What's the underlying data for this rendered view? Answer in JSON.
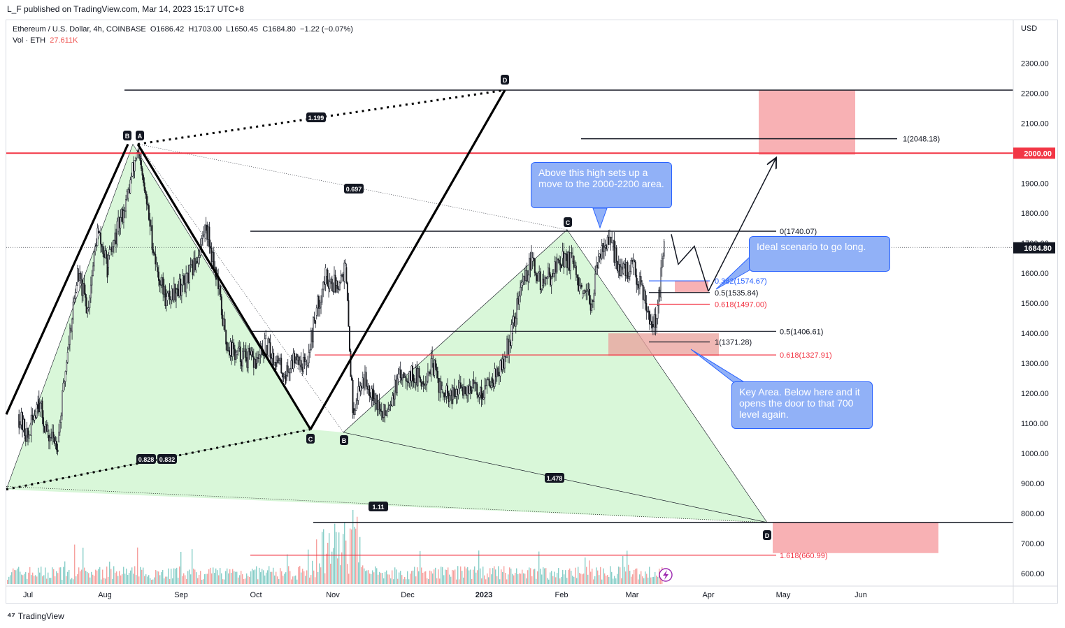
{
  "header": {
    "published": "L_F published on TradingView.com, Mar 14, 2023 15:17 UTC+8"
  },
  "legend": {
    "symbol": "Ethereum / U.S. Dollar, 4h, COINBASE",
    "open": "O1686.42",
    "high": "H1703.00",
    "low": "L1650.45",
    "close": "C1684.80",
    "change": "−1.22 (−0.07%)",
    "vol_label": "Vol · ETH",
    "vol_value": "27.611K"
  },
  "footer": {
    "brand": "TradingView"
  },
  "colors": {
    "up": "#26a69a",
    "down": "#ef5350",
    "zone": "#f7a3a7",
    "pattern_fill": "#d9f7d9",
    "callout_bg": "#91b1f7",
    "resistance": "#f23645",
    "fib_blue": "#2962ff"
  },
  "chart_data": {
    "type": "candlestick",
    "title": "Ethereum / U.S. Dollar, 4h, COINBASE",
    "ylabel": "USD",
    "ylim": [
      560,
      2520
    ],
    "y_ticks": [
      "600.00",
      "700.00",
      "800.00",
      "900.00",
      "1000.00",
      "1100.00",
      "1200.00",
      "1300.00",
      "1400.00",
      "1500.00",
      "1600.00",
      "1700.00",
      "1800.00",
      "1900.00",
      "2000.00",
      "2100.00",
      "2200.00",
      "2300.00"
    ],
    "x_ticks": [
      "Jul",
      "Aug",
      "Sep",
      "Oct",
      "Nov",
      "Dec",
      "2023",
      "Feb",
      "Mar",
      "Apr",
      "May",
      "Jun"
    ],
    "price_path": [
      [
        "Jun 27",
        1130
      ],
      [
        "Jul 1",
        1050
      ],
      [
        "Jul 5",
        1180
      ],
      [
        "Jul 9",
        1060
      ],
      [
        "Jul 13",
        1040
      ],
      [
        "Jul 17",
        1350
      ],
      [
        "Jul 21",
        1600
      ],
      [
        "Jul 25",
        1480
      ],
      [
        "Jul 29",
        1740
      ],
      [
        "Aug 2",
        1620
      ],
      [
        "Aug 6",
        1740
      ],
      [
        "Aug 10",
        1850
      ],
      [
        "Aug 14",
        2010
      ],
      [
        "Aug 18",
        1830
      ],
      [
        "Aug 22",
        1620
      ],
      [
        "Aug 26",
        1510
      ],
      [
        "Aug 30",
        1550
      ],
      [
        "Sep 3",
        1570
      ],
      [
        "Sep 7",
        1640
      ],
      [
        "Sep 11",
        1760
      ],
      [
        "Sep 15",
        1600
      ],
      [
        "Sep 19",
        1370
      ],
      [
        "Sep 23",
        1330
      ],
      [
        "Sep 27",
        1320
      ],
      [
        "Oct 1",
        1300
      ],
      [
        "Oct 5",
        1360
      ],
      [
        "Oct 9",
        1310
      ],
      [
        "Oct 13",
        1260
      ],
      [
        "Oct 17",
        1330
      ],
      [
        "Oct 21",
        1290
      ],
      [
        "Oct 25",
        1460
      ],
      [
        "Oct 29",
        1590
      ],
      [
        "Nov 2",
        1560
      ],
      [
        "Nov 6",
        1620
      ],
      [
        "Nov 9",
        1150
      ],
      [
        "Nov 13",
        1250
      ],
      [
        "Nov 17",
        1210
      ],
      [
        "Nov 21",
        1120
      ],
      [
        "Nov 25",
        1200
      ],
      [
        "Nov 29",
        1270
      ],
      [
        "Dec 3",
        1260
      ],
      [
        "Dec 7",
        1240
      ],
      [
        "Dec 11",
        1300
      ],
      [
        "Dec 15",
        1200
      ],
      [
        "Dec 19",
        1180
      ],
      [
        "Dec 23",
        1220
      ],
      [
        "Dec 27",
        1220
      ],
      [
        "Dec 31",
        1200
      ],
      [
        "Jan 4",
        1250
      ],
      [
        "Jan 8",
        1280
      ],
      [
        "Jan 12",
        1400
      ],
      [
        "Jan 16",
        1560
      ],
      [
        "Jan 20",
        1640
      ],
      [
        "Jan 24",
        1560
      ],
      [
        "Jan 28",
        1600
      ],
      [
        "Feb 1",
        1650
      ],
      [
        "Feb 5",
        1640
      ],
      [
        "Feb 9",
        1520
      ],
      [
        "Feb 13",
        1510
      ],
      [
        "Feb 17",
        1700
      ],
      [
        "Feb 21",
        1690
      ],
      [
        "Feb 25",
        1600
      ],
      [
        "Mar 1",
        1620
      ],
      [
        "Mar 5",
        1560
      ],
      [
        "Mar 9",
        1430
      ],
      [
        "Mar 11",
        1450
      ],
      [
        "Mar 14",
        1685
      ]
    ],
    "annotations": {
      "prices": {
        "last_price": "1684.80",
        "resistance": "2000.00"
      },
      "pattern_points": [
        "B",
        "A",
        "C",
        "B",
        "C",
        "D",
        "D"
      ],
      "ratios": [
        "1.199",
        "0.697",
        "0.828",
        "0.832",
        "1.478",
        "1.11"
      ],
      "fib_levels": [
        {
          "label": "1(2048.18)",
          "price": 2048.18
        },
        {
          "label": "0(1740.07)",
          "price": 1740.07
        },
        {
          "label": "0.382(1574.67)",
          "price": 1574.67
        },
        {
          "label": "0.5(1535.84)",
          "price": 1535.84
        },
        {
          "label": "0.618(1497.00)",
          "price": 1497.0
        },
        {
          "label": "0.5(1406.61)",
          "price": 1406.61
        },
        {
          "label": "1(1371.28)",
          "price": 1371.28
        },
        {
          "label": "0.618(1327.91)",
          "price": 1327.91
        },
        {
          "label": "1.618(660.99)",
          "price": 660.99
        }
      ]
    }
  },
  "callouts": {
    "top": "Above this high sets up a move to the 2000-2200 area.",
    "right": "Ideal scenario to go long.",
    "bottom": "Key Area. Below here and it opens the door to that 700 level again."
  }
}
